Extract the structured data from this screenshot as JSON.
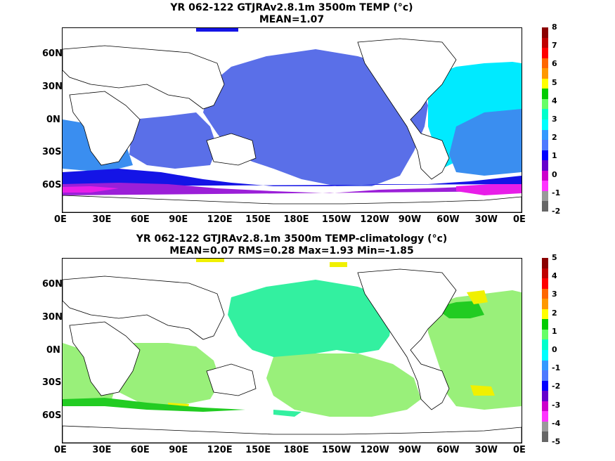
{
  "panels": [
    {
      "id": "top",
      "title_line1": "YR 062-122 GTJRAv2.8.1m 3500m TEMP (°c)",
      "title_line2": "MEAN=1.07",
      "x_ticks": [
        "0E",
        "30E",
        "60E",
        "90E",
        "120E",
        "150E",
        "180E",
        "150W",
        "120W",
        "90W",
        "60W",
        "30W",
        "0E"
      ],
      "y_ticks": [
        "60N",
        "30N",
        "0N",
        "30S",
        "60S"
      ],
      "colorbar_labels": [
        "8",
        "7",
        "6",
        "5",
        "4",
        "3",
        "2",
        "1",
        "0",
        "-1",
        "-2"
      ],
      "colorbar_colors": [
        "#8b0000",
        "#c00000",
        "#ff0000",
        "#ff6600",
        "#ff9900",
        "#ffff00",
        "#00cc00",
        "#66ff66",
        "#00ffcc",
        "#00ffff",
        "#3399ff",
        "#4d79ff",
        "#0000ff",
        "#6600cc",
        "#cc00cc",
        "#ff33ff",
        "#999999",
        "#666666"
      ]
    },
    {
      "id": "bottom",
      "title_line1": "YR 062-122 GTJRAv2.8.1m 3500m TEMP-climatology (°c)",
      "title_line2": "MEAN=0.07   RMS=0.28   Max=1.93   Min=-1.85",
      "x_ticks": [
        "0E",
        "30E",
        "60E",
        "90E",
        "120E",
        "150E",
        "180E",
        "150W",
        "120W",
        "90W",
        "60W",
        "30W",
        "0E"
      ],
      "y_ticks": [
        "60N",
        "30N",
        "0N",
        "30S",
        "60S"
      ],
      "colorbar_labels": [
        "5",
        "4",
        "3",
        "2",
        "1",
        "0",
        "-1",
        "-2",
        "-3",
        "-4",
        "-5"
      ],
      "colorbar_colors": [
        "#8b0000",
        "#c00000",
        "#ff0000",
        "#ff6600",
        "#ff9900",
        "#ffff00",
        "#00cc00",
        "#66ff66",
        "#00ffcc",
        "#00ffff",
        "#3399ff",
        "#4d79ff",
        "#0000ff",
        "#6600cc",
        "#cc00cc",
        "#ff33ff",
        "#999999",
        "#666666"
      ]
    }
  ],
  "colors": {
    "top_ocean_main": "#5a6fe8",
    "top_ocean_atlantic": "#00eaff",
    "top_ocean_indian": "#3a8ef0",
    "top_southern_blue": "#1414e6",
    "top_southern_purple": "#9b1fd8",
    "top_southern_magenta": "#e81ee8",
    "bottom_ocean_main": "#33f0a0",
    "bottom_ocean_light": "#99f07a",
    "bottom_green": "#22cc22",
    "bottom_yellow": "#f0f000"
  }
}
